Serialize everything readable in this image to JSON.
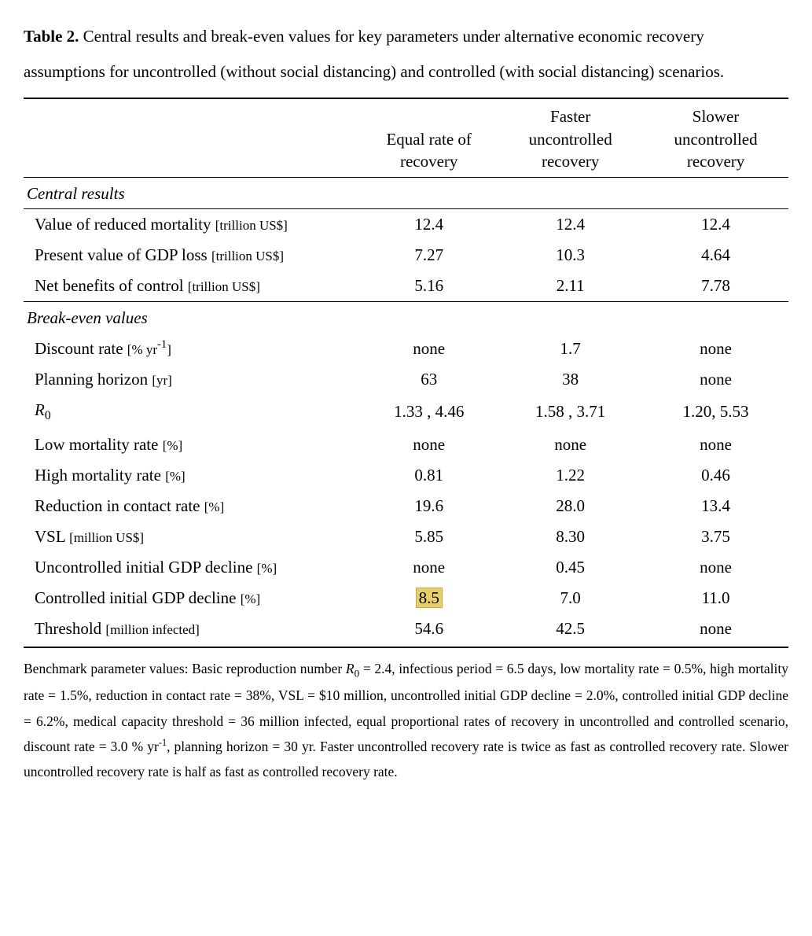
{
  "caption": {
    "label": "Table 2.",
    "text": " Central results and break-even values for key parameters under alternative economic recovery assumptions for uncontrolled (without social distancing) and controlled (with social distancing) scenarios."
  },
  "columns": [
    {
      "line1": "",
      "line2": ""
    },
    {
      "line1": "Equal rate of",
      "line2": "recovery"
    },
    {
      "line1": "Faster",
      "line2": "uncontrolled",
      "line3": "recovery"
    },
    {
      "line1": "Slower",
      "line2": "uncontrolled",
      "line3": "recovery"
    }
  ],
  "sections": [
    {
      "title": "Central results",
      "topBorder": false,
      "rows": [
        {
          "label": "Value of reduced mortality",
          "unit": "[trillion US$]",
          "vals": [
            "12.4",
            "12.4",
            "12.4"
          ]
        },
        {
          "label": "Present value of GDP loss",
          "unit": "[trillion US$]",
          "vals": [
            "7.27",
            "10.3",
            "4.64"
          ]
        },
        {
          "label": "Net benefits of control",
          "unit": "[trillion US$]",
          "vals": [
            "5.16",
            "2.11",
            "7.78"
          ]
        }
      ]
    },
    {
      "title": "Break-even values",
      "topBorder": true,
      "rows": [
        {
          "label": "Discount rate",
          "unit": "[% yr",
          "unitSup": "-1",
          "unitClose": "]",
          "vals": [
            "none",
            "1.7",
            "none"
          ]
        },
        {
          "label": "Planning horizon",
          "unit": "[yr]",
          "vals": [
            "63",
            "38",
            "none"
          ]
        },
        {
          "labelR0": true,
          "vals": [
            "1.33 , 4.46",
            "1.58 , 3.71",
            "1.20, 5.53"
          ]
        },
        {
          "label": "Low mortality rate",
          "unit": "[%]",
          "vals": [
            "none",
            "none",
            "none"
          ]
        },
        {
          "label": "High mortality rate",
          "unit": "[%]",
          "vals": [
            "0.81",
            "1.22",
            "0.46"
          ]
        },
        {
          "label": "Reduction in contact rate",
          "unit": "[%]",
          "vals": [
            "19.6",
            "28.0",
            "13.4"
          ]
        },
        {
          "label": "VSL",
          "unit": "[million US$]",
          "vals": [
            "5.85",
            "8.30",
            "3.75"
          ]
        },
        {
          "label": "Uncontrolled initial GDP decline",
          "unit": "[%]",
          "vals": [
            "none",
            "0.45",
            "none"
          ]
        },
        {
          "label": "Controlled initial GDP decline",
          "unit": "[%]",
          "vals": [
            "8.5",
            "7.0",
            "11.0"
          ],
          "highlight": 0
        },
        {
          "label": "Threshold",
          "unit": "[million infected]",
          "vals": [
            "54.6",
            "42.5",
            "none"
          ],
          "last": true
        }
      ]
    }
  ],
  "footnote": {
    "pre": "Benchmark parameter values: Basic reproduction number ",
    "r0": "R",
    "r0sub": "0",
    "mid1": " = 2.4, infectious period = 6.5 days, low mortality rate = 0.5%, high mortality rate = 1.5%, reduction in contact rate = 38%, VSL = $10 million, uncontrolled initial GDP decline = 2.0%, controlled initial GDP decline = 6.2%, medical capacity threshold = 36 million infected, equal proportional rates of recovery in uncontrolled and controlled scenario, discount rate = 3.0 % yr",
    "sup": "-1",
    "mid2": ", planning horizon = 30 yr. Faster uncontrolled recovery rate is twice as fast as controlled recovery rate. Slower uncontrolled recovery rate is half as fast as controlled recovery rate."
  },
  "style": {
    "textColor": "#000000",
    "background": "#ffffff",
    "highlightBg": "#e7cf6e",
    "highlightBorder": "#c7a93a",
    "bodyFontSize": 21,
    "unitFontSize": 17,
    "footnoteFontSize": 17.5,
    "colWidths": [
      "44%",
      "18%",
      "19%",
      "19%"
    ]
  }
}
